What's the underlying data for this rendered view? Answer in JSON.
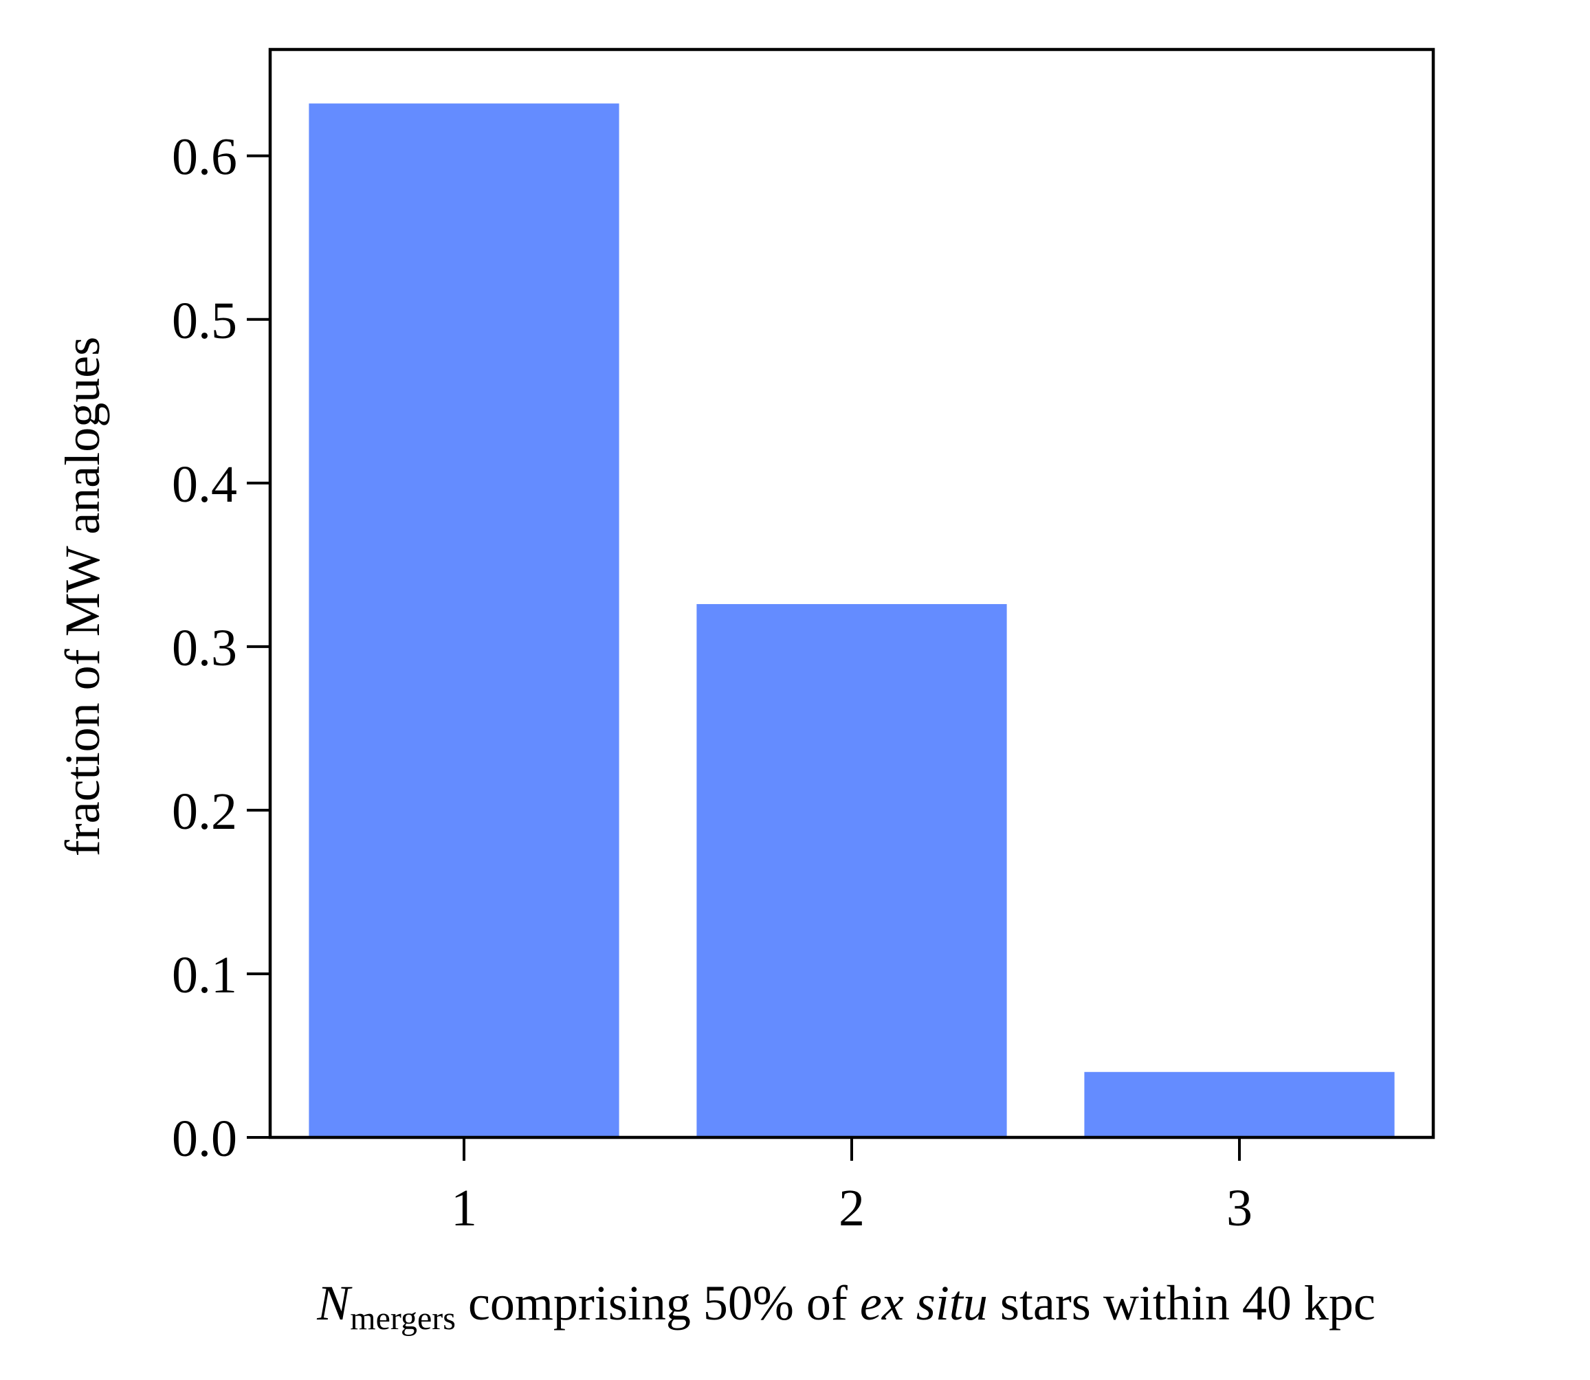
{
  "chart_data": {
    "type": "bar",
    "categories": [
      "1",
      "2",
      "3"
    ],
    "values": [
      0.632,
      0.326,
      0.04
    ],
    "bar_color": "#648cff",
    "title": "",
    "xlabel": {
      "main": "N",
      "subscript": "mergers",
      "text_before_italic": " comprising 50% of ",
      "italic": "ex situ",
      "text_after_italic": " stars within 40 kpc"
    },
    "ylabel": "fraction of MW analogues",
    "ylim": [
      0,
      0.665
    ],
    "yticks": [
      0.0,
      0.1,
      0.2,
      0.3,
      0.4,
      0.5,
      0.6
    ],
    "ytick_labels": [
      "0.0",
      "0.1",
      "0.2",
      "0.3",
      "0.4",
      "0.5",
      "0.6"
    ],
    "xticks": [
      "1",
      "2",
      "3"
    ],
    "grid": false,
    "legend": "none"
  }
}
